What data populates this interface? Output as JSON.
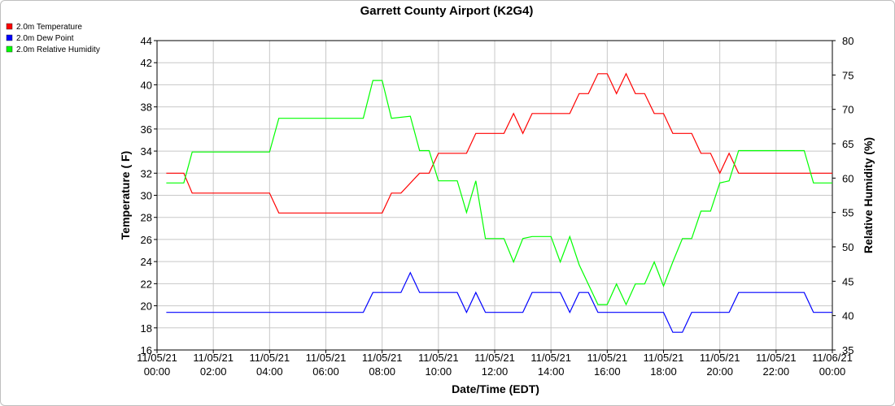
{
  "chart_data": {
    "type": "line",
    "title": "Garrett County Airport (K2G4)",
    "xlabel": "Date/Time (EDT)",
    "ylabel_left": "Temperature ( F)",
    "ylabel_right": "Relative Humidity (%)",
    "x_ticks": [
      [
        "11/05/21",
        "00:00"
      ],
      [
        "11/05/21",
        "02:00"
      ],
      [
        "11/05/21",
        "04:00"
      ],
      [
        "11/05/21",
        "06:00"
      ],
      [
        "11/05/21",
        "08:00"
      ],
      [
        "11/05/21",
        "10:00"
      ],
      [
        "11/05/21",
        "12:00"
      ],
      [
        "11/05/21",
        "14:00"
      ],
      [
        "11/05/21",
        "16:00"
      ],
      [
        "11/05/21",
        "18:00"
      ],
      [
        "11/05/21",
        "20:00"
      ],
      [
        "11/05/21",
        "22:00"
      ],
      [
        "11/06/21",
        "00:00"
      ]
    ],
    "x_unit": "hours from 11/05/21 00:00",
    "xlim": [
      0,
      24
    ],
    "ylim_left": [
      16,
      44
    ],
    "y_ticks_left": [
      16,
      18,
      20,
      22,
      24,
      26,
      28,
      30,
      32,
      34,
      36,
      38,
      40,
      42,
      44
    ],
    "ylim_right": [
      35,
      80
    ],
    "y_ticks_right": [
      35,
      40,
      45,
      50,
      55,
      60,
      65,
      70,
      75,
      80
    ],
    "grid": true,
    "legend_position": "top-left",
    "series": [
      {
        "name": "2.0m Temperature",
        "color": "#ff0000",
        "axis": "left",
        "x": [
          0.33,
          0.95,
          1.25,
          4.0,
          4.33,
          7.67,
          8.0,
          8.33,
          8.67,
          9.33,
          9.67,
          10.0,
          11.0,
          11.33,
          11.67,
          12.33,
          12.67,
          13.0,
          13.33,
          14.67,
          15.0,
          15.33,
          15.67,
          16.0,
          16.33,
          16.67,
          17.0,
          17.33,
          17.67,
          18.0,
          18.33,
          18.67,
          19.0,
          19.33,
          19.67,
          20.0,
          20.33,
          20.67,
          24.0
        ],
        "y": [
          32.0,
          32.0,
          30.2,
          30.2,
          28.4,
          28.4,
          28.4,
          30.2,
          30.2,
          32.0,
          32.0,
          33.8,
          33.8,
          35.6,
          35.6,
          35.6,
          37.4,
          35.6,
          37.4,
          37.4,
          39.2,
          39.2,
          41.0,
          41.0,
          39.2,
          41.0,
          39.2,
          39.2,
          37.4,
          37.4,
          35.6,
          35.6,
          35.6,
          33.8,
          33.8,
          32.0,
          33.8,
          32.0,
          32.0
        ]
      },
      {
        "name": "2.0m Dew Point",
        "color": "#0000ff",
        "axis": "left",
        "x": [
          0.33,
          7.33,
          7.67,
          8.33,
          8.67,
          9.0,
          9.33,
          10.67,
          11.0,
          11.33,
          11.67,
          12.33,
          13.0,
          13.33,
          13.67,
          14.33,
          14.67,
          15.0,
          15.33,
          15.67,
          18.0,
          18.33,
          18.67,
          19.0,
          19.33,
          20.33,
          20.67,
          23.0,
          23.33,
          24.0
        ],
        "y": [
          19.4,
          19.4,
          21.2,
          21.2,
          21.2,
          23.0,
          21.2,
          21.2,
          19.4,
          21.2,
          19.4,
          19.4,
          19.4,
          21.2,
          21.2,
          21.2,
          19.4,
          21.2,
          21.2,
          19.4,
          19.4,
          17.6,
          17.6,
          19.4,
          19.4,
          19.4,
          21.2,
          21.2,
          19.4,
          19.4
        ]
      },
      {
        "name": "2.0m Relative Humidity",
        "color": "#00ff00",
        "axis": "right",
        "x": [
          0.33,
          0.95,
          1.25,
          4.0,
          4.33,
          7.33,
          7.67,
          8.0,
          8.33,
          9.0,
          9.33,
          9.67,
          10.0,
          10.67,
          11.0,
          11.33,
          11.67,
          12.33,
          12.67,
          13.0,
          13.33,
          14.0,
          14.33,
          14.67,
          15.0,
          15.67,
          16.0,
          16.33,
          16.67,
          17.0,
          17.33,
          17.67,
          18.0,
          18.33,
          18.67,
          19.0,
          19.33,
          19.67,
          20.0,
          20.33,
          20.67,
          23.0,
          23.33,
          24.0
        ],
        "y": [
          59.3,
          59.3,
          63.8,
          63.8,
          68.7,
          68.7,
          74.2,
          74.2,
          68.7,
          69.0,
          64.0,
          64.0,
          59.6,
          59.6,
          55.0,
          59.6,
          51.2,
          51.2,
          47.8,
          51.2,
          51.5,
          51.5,
          47.8,
          51.5,
          47.4,
          41.6,
          41.6,
          44.6,
          41.6,
          44.6,
          44.6,
          47.8,
          44.3,
          47.8,
          51.2,
          51.2,
          55.2,
          55.2,
          59.3,
          59.6,
          64.0,
          64.0,
          59.3,
          59.3
        ]
      }
    ]
  }
}
